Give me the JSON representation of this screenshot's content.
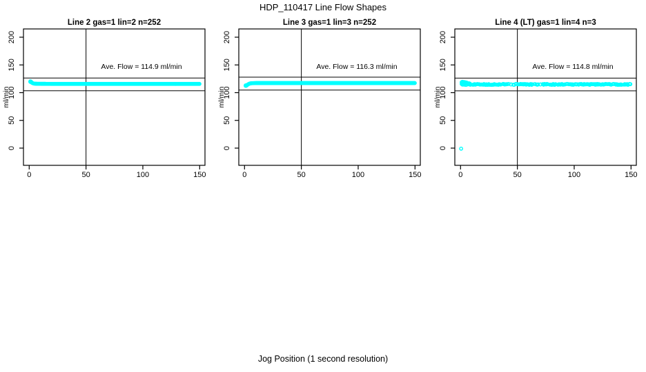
{
  "figure": {
    "title": "HDP_110417  Line Flow Shapes",
    "xlabel": "Jog Position (1 second resolution)",
    "background_color": "#FFFFFF",
    "point_color": "#00FFFF",
    "line_color": "#000000"
  },
  "chart_data": [
    {
      "type": "scatter",
      "title": "Line 2 gas=1 lin=2 n=252",
      "n": 252,
      "annotation": "Ave. Flow =  114.9  ml/min",
      "ave_flow": 114.9,
      "ylabel": "ml/min",
      "x_ticks": [
        0,
        50,
        100,
        150
      ],
      "y_ticks": [
        0,
        50,
        100,
        150,
        200
      ],
      "xlim": [
        -6,
        156
      ],
      "ylim": [
        -31,
        215
      ],
      "vline_x": 50,
      "hlines": [
        126.4,
        103.4
      ],
      "point_spacing_x": 0.6,
      "jitter": 0,
      "gap_fraction": 0,
      "series_shape": [
        [
          1,
          120.3
        ],
        [
          1.6,
          119.3
        ],
        [
          2.2,
          118.2
        ],
        [
          3,
          117.2
        ],
        [
          4,
          116.5
        ],
        [
          5,
          116.2
        ],
        [
          7,
          116.0
        ],
        [
          20,
          115.8
        ],
        [
          150,
          115.8
        ]
      ],
      "extra_points": [
        [
          1,
          119.5
        ],
        [
          1.5,
          120.0
        ],
        [
          2,
          118.8
        ]
      ],
      "outliers": []
    },
    {
      "type": "scatter",
      "title": "Line 3 gas=1 lin=3 n=252",
      "n": 252,
      "annotation": "Ave. Flow =  116.3  ml/min",
      "ave_flow": 116.3,
      "ylabel": "ml/min",
      "x_ticks": [
        0,
        50,
        100,
        150
      ],
      "y_ticks": [
        0,
        50,
        100,
        150,
        200
      ],
      "xlim": [
        -6,
        156
      ],
      "ylim": [
        -31,
        215
      ],
      "vline_x": 50,
      "hlines": [
        127.9,
        104.7
      ],
      "point_spacing_x": 0.6,
      "jitter": 0,
      "gap_fraction": 0,
      "series_shape": [
        [
          1,
          112.3
        ],
        [
          1.8,
          113.0
        ],
        [
          2.6,
          114.2
        ],
        [
          3.5,
          115.5
        ],
        [
          4.5,
          116.4
        ],
        [
          6,
          117.0
        ],
        [
          10,
          117.3
        ],
        [
          150,
          117.3
        ]
      ],
      "extra_points": [
        [
          1,
          113.2
        ],
        [
          1.5,
          112.5
        ]
      ],
      "outliers": []
    },
    {
      "type": "scatter",
      "title": "Line 4 (LT) gas=1 lin=4 n=3",
      "n": 3,
      "annotation": "Ave. Flow =  114.8  ml/min",
      "ave_flow": 114.8,
      "ylabel": "ml/min",
      "x_ticks": [
        0,
        50,
        100,
        150
      ],
      "y_ticks": [
        0,
        50,
        100,
        150,
        200
      ],
      "xlim": [
        -6,
        156
      ],
      "ylim": [
        -31,
        215
      ],
      "vline_x": 50,
      "hlines": [
        126.3,
        103.3
      ],
      "point_spacing_x": 0.7,
      "jitter": 0.8,
      "gap_fraction": 0.2,
      "series_shape": [
        [
          1,
          114.9
        ],
        [
          150,
          114.9
        ]
      ],
      "extra_points": [
        [
          1,
          118.8
        ],
        [
          1.6,
          119.6
        ],
        [
          2.2,
          119.2
        ],
        [
          2.8,
          118.4
        ],
        [
          3.4,
          119.0
        ],
        [
          4,
          118.6
        ],
        [
          4.6,
          117.8
        ],
        [
          5.2,
          118.3
        ],
        [
          5.8,
          117.2
        ],
        [
          6.6,
          116.5
        ],
        [
          7.4,
          116.9
        ],
        [
          8.2,
          116.2
        ]
      ],
      "outliers": [
        [
          0.5,
          -1
        ]
      ]
    }
  ]
}
